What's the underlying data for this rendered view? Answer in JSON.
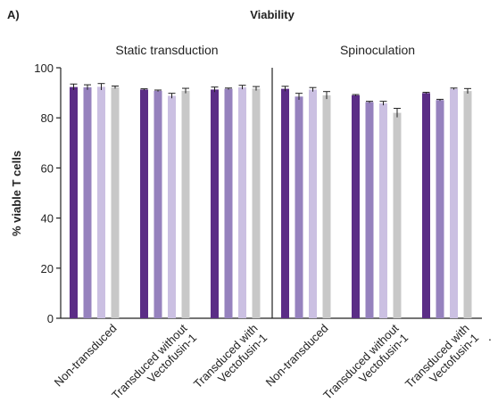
{
  "panel_label": "A)",
  "chart_data": {
    "type": "bar",
    "title": "Viability",
    "ylabel": "% viable T cells",
    "xlabel": "",
    "ylim": [
      0,
      100
    ],
    "yticks": [
      0,
      20,
      40,
      60,
      80,
      100
    ],
    "grid": false,
    "legend": "none",
    "colors": [
      "#5b2d86",
      "#9682be",
      "#cbc0e2",
      "#c8c8c8"
    ],
    "stray_mark": ".",
    "panels": [
      {
        "title": "Static transduction",
        "groups": [
          {
            "label": [
              "Non-transduced"
            ],
            "values": [
              92.3,
              92.2,
              92.4,
              92.2
            ],
            "errors": [
              1.2,
              1.0,
              1.3,
              0.5
            ]
          },
          {
            "label": [
              "Transduced without",
              "Vectofusin-1"
            ],
            "values": [
              91.3,
              90.8,
              88.8,
              90.8
            ],
            "errors": [
              0.3,
              0.3,
              1.0,
              1.0
            ]
          },
          {
            "label": [
              "Transduced with",
              "Vectofusin-1"
            ],
            "values": [
              91.3,
              91.6,
              92.2,
              91.7
            ],
            "errors": [
              1.0,
              0.3,
              0.8,
              0.8
            ]
          }
        ]
      },
      {
        "title": "Spinoculation",
        "groups": [
          {
            "label": [
              "Non-transduced"
            ],
            "values": [
              91.6,
              88.5,
              91.3,
              89.0
            ],
            "errors": [
              1.0,
              1.3,
              0.8,
              1.5
            ]
          },
          {
            "label": [
              "Transduced without",
              "Vectofusin-1"
            ],
            "values": [
              89.0,
              86.3,
              85.8,
              82.0
            ],
            "errors": [
              0.3,
              0.3,
              0.8,
              1.8
            ]
          },
          {
            "label": [
              "Transduced with",
              "Vectofusin-1"
            ],
            "values": [
              89.9,
              87.1,
              91.6,
              90.7
            ],
            "errors": [
              0.3,
              0.3,
              0.3,
              1.0
            ]
          }
        ]
      }
    ]
  }
}
